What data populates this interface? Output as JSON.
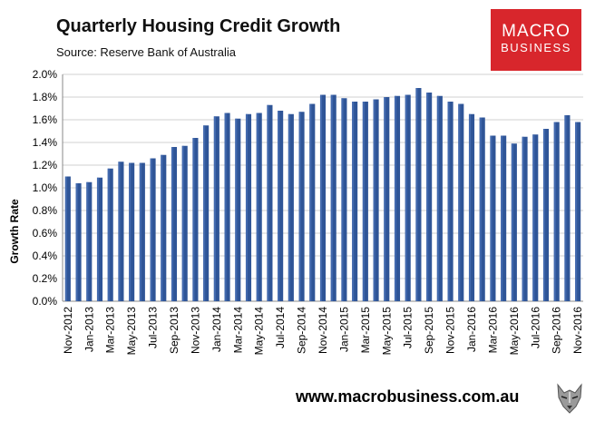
{
  "header": {
    "title": "Quarterly Housing Credit Growth",
    "source": "Source: Reserve Bank of Australia"
  },
  "logo": {
    "line1": "MACRO",
    "line2": "BUSINESS",
    "color": "#d8262c"
  },
  "footer": {
    "url": "www.macrobusiness.com.au"
  },
  "chart_data": {
    "type": "bar",
    "title": "Quarterly Housing Credit Growth",
    "ylabel": "Growth Rate",
    "xlabel": "",
    "ylim": [
      0,
      2.0
    ],
    "yticks": [
      "0.0%",
      "0.2%",
      "0.4%",
      "0.6%",
      "0.8%",
      "1.0%",
      "1.2%",
      "1.4%",
      "1.6%",
      "1.8%",
      "2.0%"
    ],
    "grid": true,
    "bar_color": "#2f5597",
    "categories": [
      "Nov-2012",
      "Dec-2012",
      "Jan-2013",
      "Feb-2013",
      "Mar-2013",
      "Apr-2013",
      "May-2013",
      "Jun-2013",
      "Jul-2013",
      "Aug-2013",
      "Sep-2013",
      "Oct-2013",
      "Nov-2013",
      "Dec-2013",
      "Jan-2014",
      "Feb-2014",
      "Mar-2014",
      "Apr-2014",
      "May-2014",
      "Jun-2014",
      "Jul-2014",
      "Aug-2014",
      "Sep-2014",
      "Oct-2014",
      "Nov-2014",
      "Dec-2014",
      "Jan-2015",
      "Feb-2015",
      "Mar-2015",
      "Apr-2015",
      "May-2015",
      "Jun-2015",
      "Jul-2015",
      "Aug-2015",
      "Sep-2015",
      "Oct-2015",
      "Nov-2015",
      "Dec-2015",
      "Jan-2016",
      "Feb-2016",
      "Mar-2016",
      "Apr-2016",
      "May-2016",
      "Jun-2016",
      "Jul-2016",
      "Aug-2016",
      "Sep-2016",
      "Oct-2016",
      "Nov-2016"
    ],
    "tick_labels": [
      "Nov-2012",
      "",
      "Jan-2013",
      "",
      "Mar-2013",
      "",
      "May-2013",
      "",
      "Jul-2013",
      "",
      "Sep-2013",
      "",
      "Nov-2013",
      "",
      "Jan-2014",
      "",
      "Mar-2014",
      "",
      "May-2014",
      "",
      "Jul-2014",
      "",
      "Sep-2014",
      "",
      "Nov-2014",
      "",
      "Jan-2015",
      "",
      "Mar-2015",
      "",
      "May-2015",
      "",
      "Jul-2015",
      "",
      "Sep-2015",
      "",
      "Nov-2015",
      "",
      "Jan-2016",
      "",
      "Mar-2016",
      "",
      "May-2016",
      "",
      "Jul-2016",
      "",
      "Sep-2016",
      "",
      "Nov-2016"
    ],
    "values": [
      1.1,
      1.04,
      1.05,
      1.09,
      1.17,
      1.23,
      1.22,
      1.22,
      1.26,
      1.29,
      1.36,
      1.37,
      1.44,
      1.55,
      1.63,
      1.66,
      1.61,
      1.65,
      1.66,
      1.73,
      1.68,
      1.65,
      1.67,
      1.74,
      1.82,
      1.82,
      1.79,
      1.76,
      1.76,
      1.78,
      1.8,
      1.81,
      1.82,
      1.88,
      1.84,
      1.81,
      1.76,
      1.74,
      1.65,
      1.62,
      1.46,
      1.46,
      1.39,
      1.45,
      1.47,
      1.52,
      1.58,
      1.64,
      1.58
    ]
  }
}
